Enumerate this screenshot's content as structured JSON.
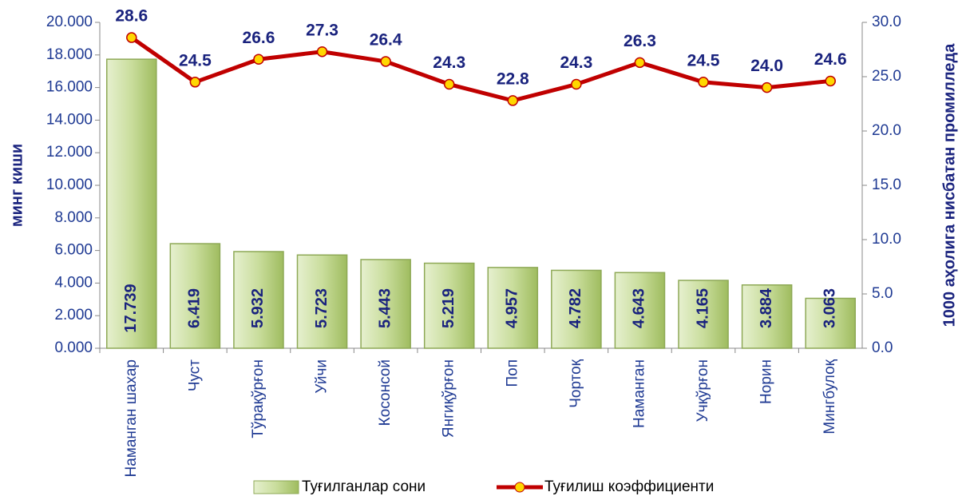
{
  "chart_data": {
    "type": "bar",
    "categories": [
      "Наманган шахар",
      "Чуст",
      "Тўрақўрғон",
      "Уйчи",
      "Косонсой",
      "Янгиқўрғон",
      "Поп",
      "Чортоқ",
      "Наманган",
      "Учқўрғон",
      "Норин",
      "Мингбулоқ"
    ],
    "ylabel": "минг киши",
    "y2label": "1000 аҳолига нисбатан промилледа",
    "ylim": [
      0,
      20
    ],
    "yticks": [
      {
        "value": 0,
        "label": "0.000"
      },
      {
        "value": 2,
        "label": "2.000"
      },
      {
        "value": 4,
        "label": "4.000"
      },
      {
        "value": 6,
        "label": "6.000"
      },
      {
        "value": 8,
        "label": "8.000"
      },
      {
        "value": 10,
        "label": "10.000"
      },
      {
        "value": 12,
        "label": "12.000"
      },
      {
        "value": 14,
        "label": "14.000"
      },
      {
        "value": 16,
        "label": "16.000"
      },
      {
        "value": 18,
        "label": "18.000"
      },
      {
        "value": 20,
        "label": "20.000"
      }
    ],
    "y2lim": [
      0,
      30
    ],
    "y2ticks": [
      {
        "value": 0,
        "label": "0.0"
      },
      {
        "value": 5,
        "label": "5.0"
      },
      {
        "value": 10,
        "label": "10.0"
      },
      {
        "value": 15,
        "label": "15.0"
      },
      {
        "value": 20,
        "label": "20.0"
      },
      {
        "value": 25,
        "label": "25.0"
      },
      {
        "value": 30,
        "label": "30.0"
      }
    ],
    "legend": "bottom",
    "series": [
      {
        "name": "Туғилганлар сони",
        "type": "bar",
        "color": "#c9dd9c",
        "values": [
          17.739,
          6.419,
          5.932,
          5.723,
          5.443,
          5.219,
          4.957,
          4.782,
          4.643,
          4.165,
          3.884,
          3.063
        ]
      },
      {
        "name": "Туғилиш коэффициенти",
        "type": "line",
        "axis": "y2",
        "color": "#c00000",
        "values": [
          28.6,
          24.5,
          26.6,
          27.3,
          26.4,
          24.3,
          22.8,
          24.3,
          26.3,
          24.5,
          24.0,
          24.6
        ],
        "value_labels": [
          "28.6",
          "24.5",
          "26.6",
          "27.3",
          "26.4",
          "24.3",
          "22.8",
          "24.3",
          "26.3",
          "24.5",
          "24.0",
          "24.6"
        ]
      }
    ]
  }
}
